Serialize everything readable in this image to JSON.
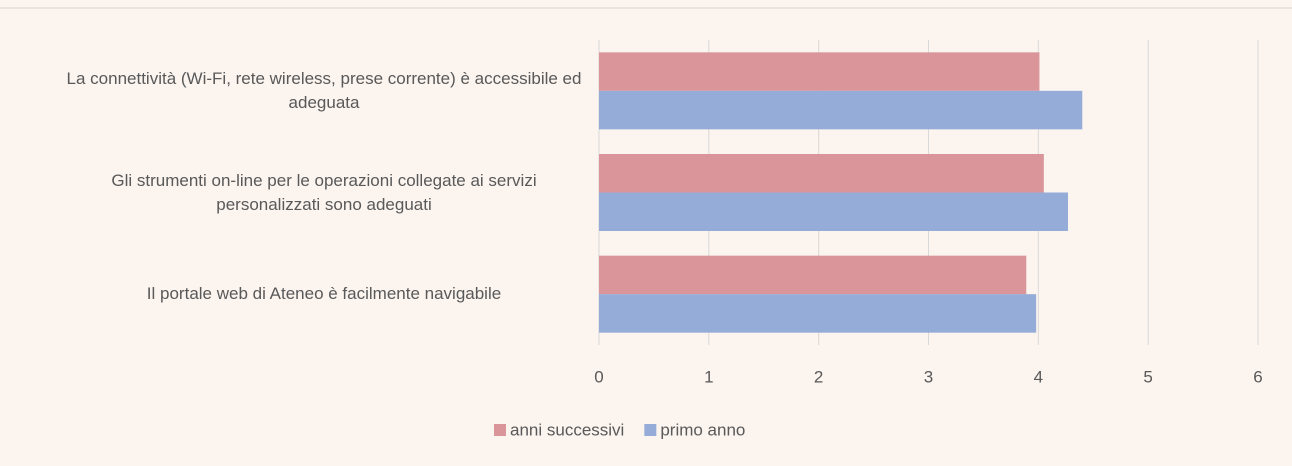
{
  "chart_data": {
    "type": "bar",
    "orientation": "horizontal",
    "categories": [
      "La connettività (Wi-Fi, rete wireless, prese corrente) è accessibile ed adeguata",
      "Gli strumenti on-line per le operazioni collegate ai servizi personalizzati sono adeguati",
      "Il portale web di Ateneo è facilmente navigabile"
    ],
    "series": [
      {
        "name": "anni successivi",
        "color": "#d9959a",
        "values": [
          4.01,
          4.05,
          3.89
        ]
      },
      {
        "name": "primo anno",
        "color": "#95acd9",
        "values": [
          4.4,
          4.27,
          3.98
        ]
      }
    ],
    "xlim": [
      0,
      6
    ],
    "xticks": [
      0,
      1,
      2,
      3,
      4,
      5,
      6
    ],
    "grid": true,
    "legend": "bottom"
  }
}
